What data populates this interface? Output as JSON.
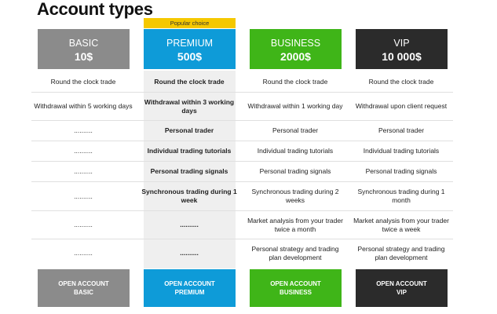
{
  "title": "Account types",
  "badge": "Popular choice",
  "colors": {
    "basic": "#8b8b8b",
    "premium": "#0e9bd8",
    "business": "#3fb518",
    "vip": "#2b2b2b",
    "badge": "#f5c800"
  },
  "plans": [
    {
      "name": "BASIC",
      "price": "10$",
      "button_line1": "OPEN ACCOUNT",
      "button_line2": "BASIC"
    },
    {
      "name": "PREMIUM",
      "price": "500$",
      "button_line1": "OPEN ACCOUNT",
      "button_line2": "PREMIUM"
    },
    {
      "name": "BUSINESS",
      "price": "2000$",
      "button_line1": "OPEN ACCOUNT",
      "button_line2": "BUSINESS"
    },
    {
      "name": "VIP",
      "price": "10 000$",
      "button_line1": "OPEN ACCOUNT",
      "button_line2": "VIP"
    }
  ],
  "rows": [
    [
      "Round the clock trade",
      "Round the clock trade",
      "Round the clock trade",
      "Round the clock trade"
    ],
    [
      "Withdrawal within 5 working days",
      "Withdrawal within 3 working days",
      "Withdrawal within 1 working day",
      "Withdrawal upon client request"
    ],
    [
      "..........",
      "Personal trader",
      "Personal trader",
      "Personal trader"
    ],
    [
      "..........",
      "Individual trading tutorials",
      "Individual trading tutorials",
      "Individual trading tutorials"
    ],
    [
      "..........",
      "Personal trading signals",
      "Personal trading signals",
      "Personal trading signals"
    ],
    [
      "..........",
      "Synchronous trading during 1 week",
      "Synchronous trading during 2 weeks",
      "Synchronous trading during 1 month"
    ],
    [
      "..........",
      "..........",
      "Market analysis from your trader twice a month",
      "Market analysis from your trader twice a week"
    ],
    [
      "..........",
      "..........",
      "Personal strategy and trading plan development",
      "Personal strategy and trading plan development"
    ]
  ]
}
